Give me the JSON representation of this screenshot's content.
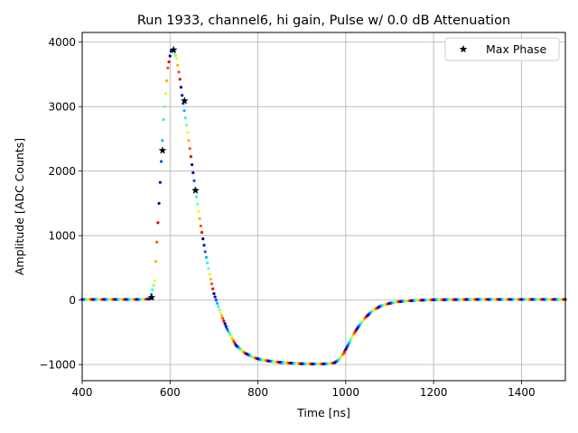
{
  "chart_data": {
    "type": "scatter",
    "title": "Run 1933, channel6, hi gain, Pulse w/ 0.0 dB Attenuation",
    "xlabel": "Time [ns]",
    "ylabel": "Amplitude [ADC Counts]",
    "xlim": [
      400,
      1500
    ],
    "ylim": [
      -1250,
      4150
    ],
    "xticks": [
      400,
      600,
      800,
      1000,
      1200,
      1400
    ],
    "yticks": [
      -1000,
      0,
      1000,
      2000,
      3000,
      4000
    ],
    "grid": true,
    "legend": {
      "position": "top-right",
      "entries": [
        {
          "label": "Max Phase",
          "marker": "star",
          "color": "#000000"
        }
      ]
    },
    "colormap": "jet",
    "waveform": {
      "x": [
        400,
        540,
        555,
        565,
        575,
        585,
        595,
        602,
        608,
        615,
        622,
        630,
        640,
        650,
        660,
        670,
        680,
        690,
        700,
        715,
        730,
        750,
        770,
        790,
        810,
        830,
        850,
        870,
        890,
        910,
        930,
        950,
        965,
        975,
        985,
        995,
        1005,
        1015,
        1030,
        1045,
        1060,
        1080,
        1100,
        1120,
        1140,
        1160,
        1180,
        1200,
        1300,
        1400,
        1500
      ],
      "y": [
        10,
        10,
        20,
        300,
        1500,
        2800,
        3600,
        3860,
        3880,
        3750,
        3450,
        3050,
        2600,
        2100,
        1600,
        1150,
        750,
        400,
        100,
        -200,
        -450,
        -700,
        -820,
        -890,
        -930,
        -950,
        -965,
        -975,
        -985,
        -990,
        -992,
        -990,
        -985,
        -970,
        -920,
        -830,
        -700,
        -560,
        -400,
        -270,
        -170,
        -90,
        -50,
        -25,
        -12,
        -5,
        0,
        5,
        10,
        10,
        10
      ]
    },
    "max_phase": {
      "label": "Max Phase",
      "x": [
        558,
        583,
        608,
        633,
        658
      ],
      "y": [
        40,
        2320,
        3880,
        3090,
        1700
      ]
    }
  }
}
